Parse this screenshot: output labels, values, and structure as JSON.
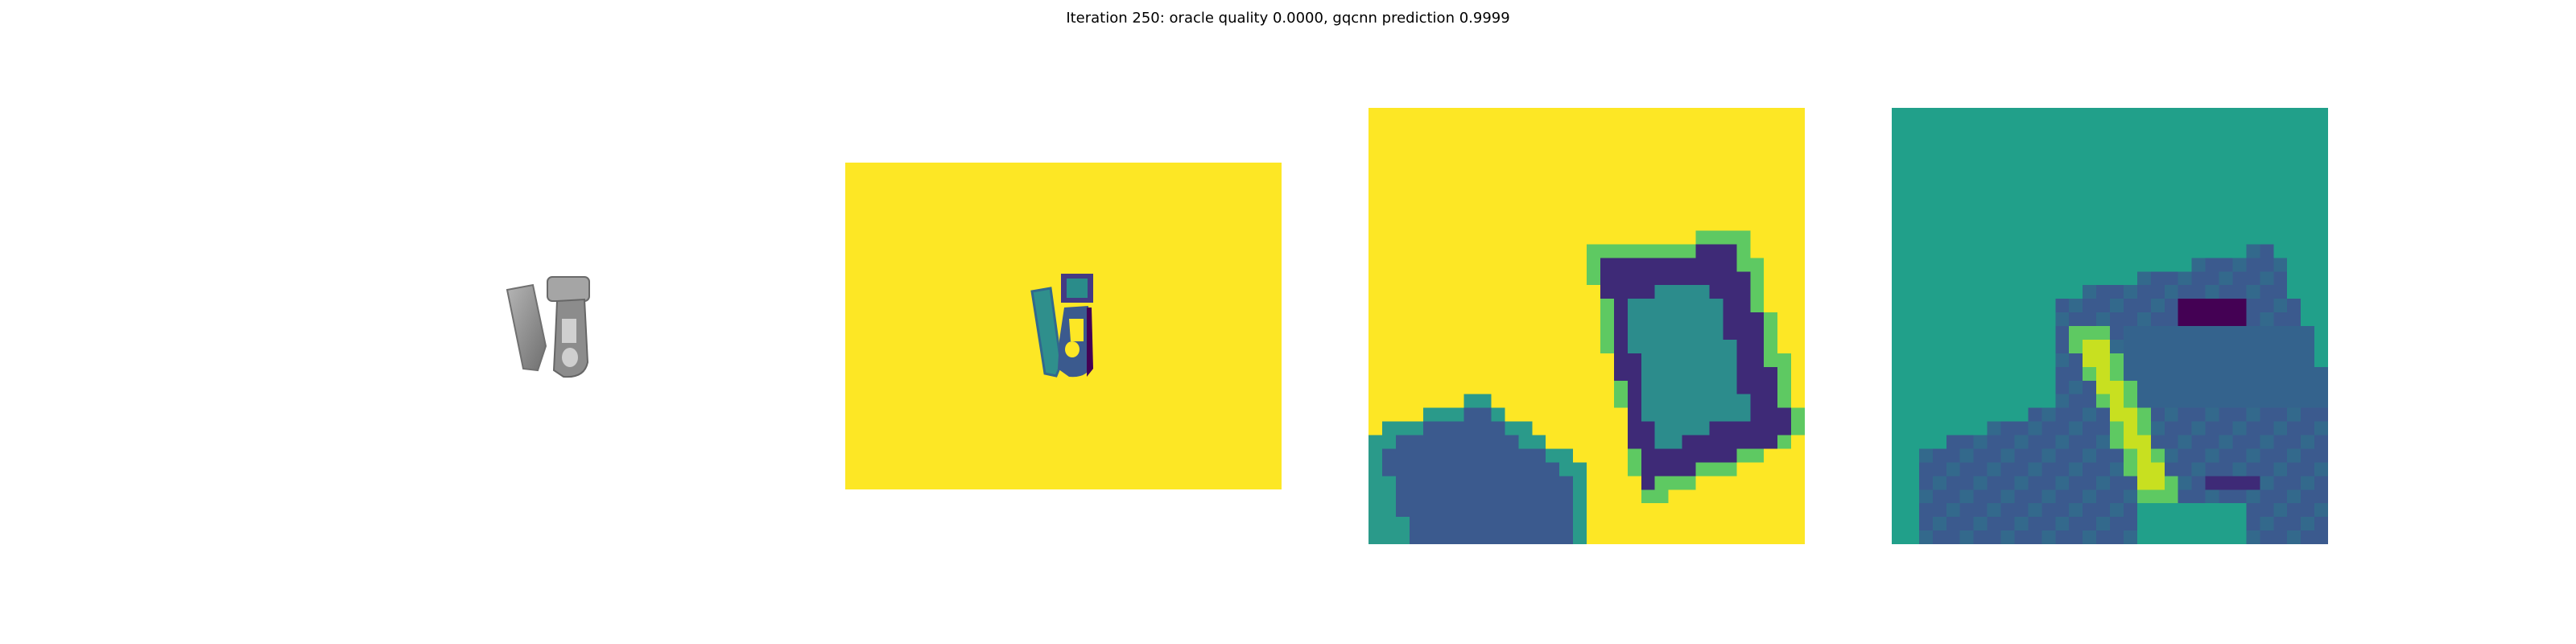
{
  "figure": {
    "title": "Iteration 250: oracle quality 0.0000, gqcnn prediction 0.9999"
  },
  "panels": [
    {
      "name": "rendered-object",
      "content": "grayscale rendering of a gripper-like object"
    },
    {
      "name": "depth-image",
      "content": "viridis colormap depth image with object at center"
    },
    {
      "name": "depth-crop",
      "content": "zoomed pixelated crop of the object depth"
    },
    {
      "name": "prediction-map",
      "content": "zoomed pixelated teal/green map"
    }
  ],
  "colors": {
    "viridis_yellow": "#fde725",
    "viridis_teal": "#21a08a",
    "viridis_blue": "#3b5a8e",
    "viridis_dark": "#440154",
    "viridis_green": "#5ec962",
    "object_gray": "#8a8a8a"
  }
}
